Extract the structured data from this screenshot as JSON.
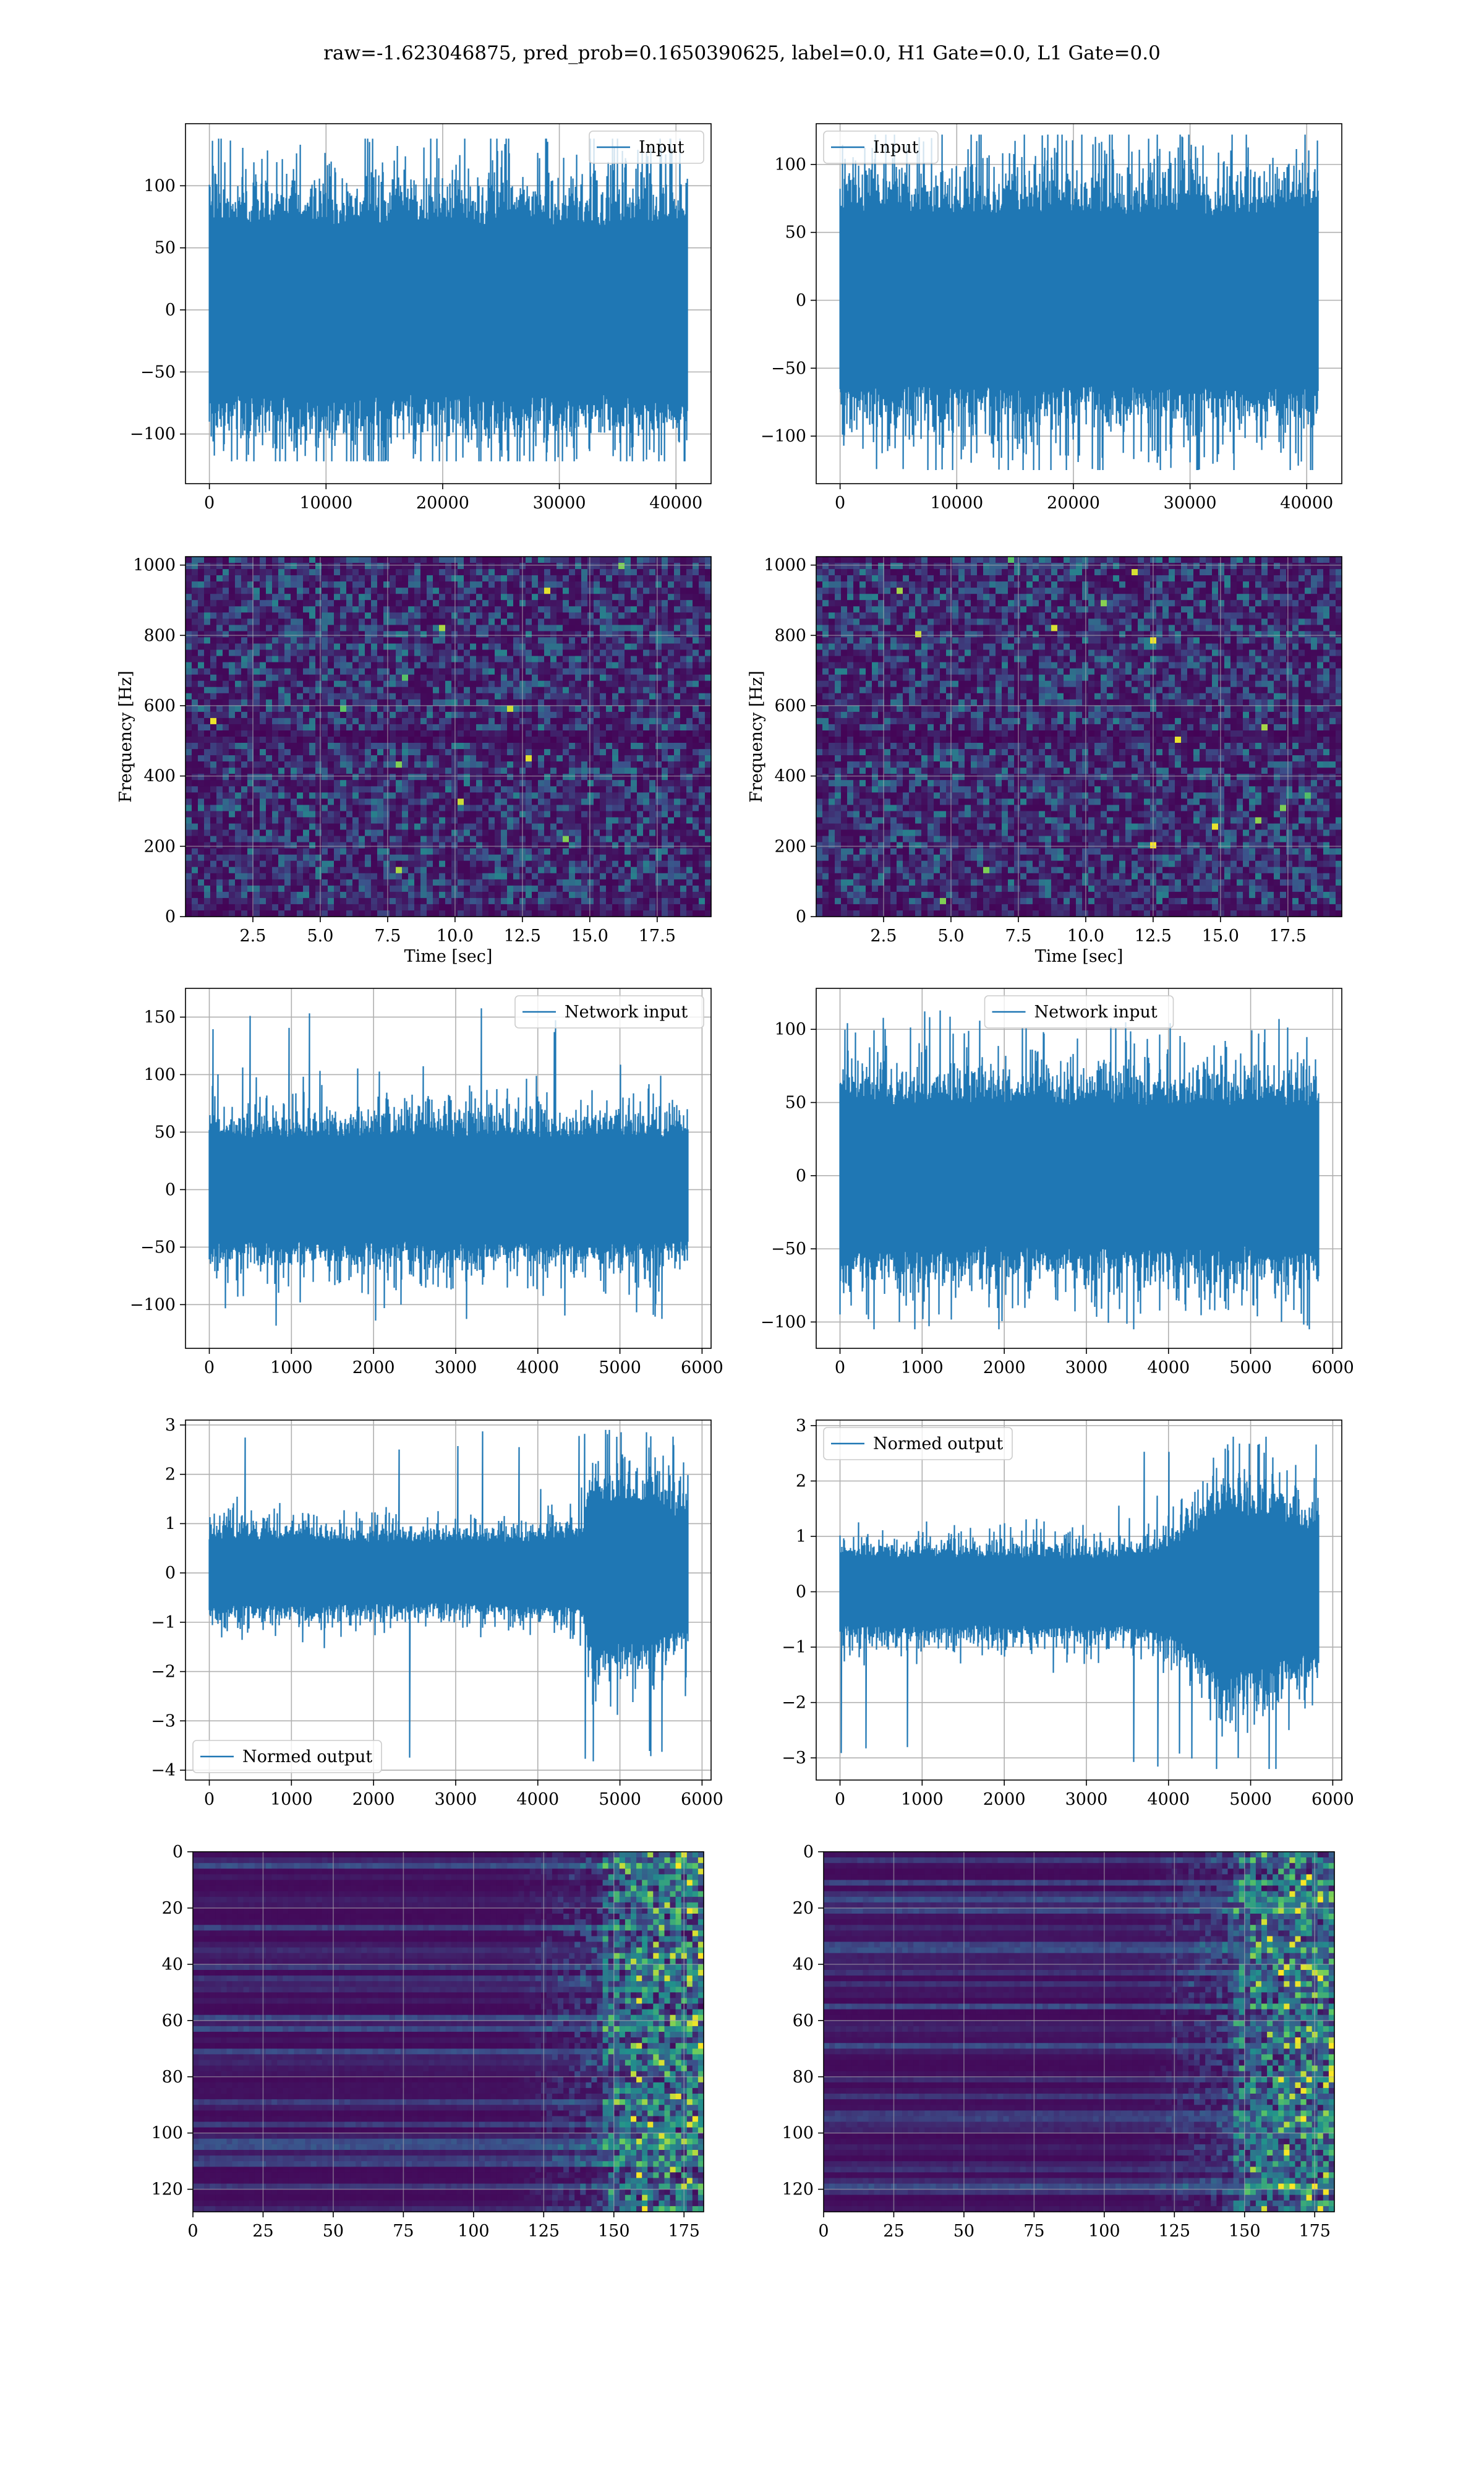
{
  "title": "raw=-1.623046875, pred_prob=0.1650390625, label=0.0, H1 Gate=0.0, L1 Gate=0.0",
  "colors": {
    "line": "#1f77b4",
    "grid": "#b0b0b0",
    "viridis_dark": "#440154",
    "viridis_mid": "#21918c",
    "viridis_bright": "#fde725"
  },
  "chart_data": [
    {
      "id": "input-h1",
      "type": "line",
      "legend": "Input",
      "legend_loc": "upper right",
      "xlim": [
        -2048,
        43008
      ],
      "ylim": [
        -140,
        150
      ],
      "xticks": [
        0,
        10000,
        20000,
        30000,
        40000
      ],
      "xtick_labels": [
        "0",
        "10000",
        "20000",
        "30000",
        "40000"
      ],
      "yticks": [
        -100,
        -50,
        0,
        50,
        100
      ],
      "ytick_labels": [
        "−100",
        "−50",
        "0",
        "50",
        "100"
      ],
      "xlabel": "",
      "ylabel": "",
      "grid": true,
      "signal": {
        "n": 40960,
        "x_range": [
          0,
          40960
        ],
        "core_amp": 68,
        "spike_max": 138,
        "spike_min": -122,
        "envelope": [
          [
            0,
            1
          ],
          [
            1,
            1
          ]
        ]
      }
    },
    {
      "id": "input-l1",
      "type": "line",
      "legend": "Input",
      "legend_loc": "upper left",
      "xlim": [
        -2048,
        43008
      ],
      "ylim": [
        -135,
        130
      ],
      "xticks": [
        0,
        10000,
        20000,
        30000,
        40000
      ],
      "xtick_labels": [
        "0",
        "10000",
        "20000",
        "30000",
        "40000"
      ],
      "yticks": [
        -100,
        -50,
        0,
        50,
        100
      ],
      "ytick_labels": [
        "−100",
        "−50",
        "0",
        "50",
        "100"
      ],
      "xlabel": "",
      "ylabel": "",
      "grid": true,
      "signal": {
        "n": 40960,
        "x_range": [
          0,
          40960
        ],
        "core_amp": 62,
        "spike_max": 122,
        "spike_min": -125,
        "envelope": [
          [
            0,
            1
          ],
          [
            1,
            1
          ]
        ]
      }
    },
    {
      "id": "spec-h1",
      "type": "heatmap",
      "xlabel": "Time [sec]",
      "ylabel": "Frequency [Hz]",
      "xlim": [
        0,
        19.5
      ],
      "ylim": [
        0,
        1024
      ],
      "xticks": [
        2.5,
        5.0,
        7.5,
        10.0,
        12.5,
        15.0,
        17.5
      ],
      "xtick_labels": [
        "2.5",
        "5.0",
        "7.5",
        "10.0",
        "12.5",
        "15.0",
        "17.5"
      ],
      "yticks": [
        0,
        200,
        400,
        600,
        800,
        1000
      ],
      "ytick_labels": [
        "0",
        "200",
        "400",
        "600",
        "800",
        "1000"
      ],
      "grid": true,
      "colormap": "viridis"
    },
    {
      "id": "spec-l1",
      "type": "heatmap",
      "xlabel": "Time [sec]",
      "ylabel": "Frequency [Hz]",
      "xlim": [
        0,
        19.5
      ],
      "ylim": [
        0,
        1024
      ],
      "xticks": [
        2.5,
        5.0,
        7.5,
        10.0,
        12.5,
        15.0,
        17.5
      ],
      "xtick_labels": [
        "2.5",
        "5.0",
        "7.5",
        "10.0",
        "12.5",
        "15.0",
        "17.5"
      ],
      "yticks": [
        0,
        200,
        400,
        600,
        800,
        1000
      ],
      "ytick_labels": [
        "0",
        "200",
        "400",
        "600",
        "800",
        "1000"
      ],
      "grid": true,
      "colormap": "viridis"
    },
    {
      "id": "netin-h1",
      "type": "line",
      "legend": "Network input",
      "legend_loc": "upper right",
      "xlim": [
        -290,
        6110
      ],
      "ylim": [
        -138,
        175
      ],
      "xticks": [
        0,
        1000,
        2000,
        3000,
        4000,
        5000,
        6000
      ],
      "xtick_labels": [
        "0",
        "1000",
        "2000",
        "3000",
        "4000",
        "5000",
        "6000"
      ],
      "yticks": [
        -100,
        -50,
        0,
        50,
        100,
        150
      ],
      "ytick_labels": [
        "−100",
        "−50",
        "0",
        "50",
        "100",
        "150"
      ],
      "xlabel": "",
      "ylabel": "",
      "grid": true,
      "signal": {
        "n": 5824,
        "x_range": [
          0,
          5824
        ],
        "core_amp": 45,
        "spike_max": 160,
        "spike_min": -120,
        "envelope": [
          [
            0,
            1
          ],
          [
            1,
            1
          ]
        ]
      }
    },
    {
      "id": "netin-l1",
      "type": "line",
      "legend": "Network input",
      "legend_loc": "upper center",
      "xlim": [
        -290,
        6110
      ],
      "ylim": [
        -118,
        128
      ],
      "xticks": [
        0,
        1000,
        2000,
        3000,
        4000,
        5000,
        6000
      ],
      "xtick_labels": [
        "0",
        "1000",
        "2000",
        "3000",
        "4000",
        "5000",
        "6000"
      ],
      "yticks": [
        -100,
        -50,
        0,
        50,
        100
      ],
      "ytick_labels": [
        "−100",
        "−50",
        "0",
        "50",
        "100"
      ],
      "xlabel": "",
      "ylabel": "",
      "grid": true,
      "signal": {
        "n": 5824,
        "x_range": [
          0,
          5824
        ],
        "core_amp": 48,
        "spike_max": 115,
        "spike_min": -105,
        "envelope": [
          [
            0,
            1
          ],
          [
            1,
            1
          ]
        ]
      }
    },
    {
      "id": "normed-h1",
      "type": "line",
      "legend": "Normed output",
      "legend_loc": "lower left",
      "xlim": [
        -290,
        6110
      ],
      "ylim": [
        -4.2,
        3.1
      ],
      "xticks": [
        0,
        1000,
        2000,
        3000,
        4000,
        5000,
        6000
      ],
      "xtick_labels": [
        "0",
        "1000",
        "2000",
        "3000",
        "4000",
        "5000",
        "6000"
      ],
      "yticks": [
        -4,
        -3,
        -2,
        -1,
        0,
        1,
        2,
        3
      ],
      "ytick_labels": [
        "−4",
        "−3",
        "−2",
        "−1",
        "0",
        "1",
        "2",
        "3"
      ],
      "xlabel": "",
      "ylabel": "",
      "grid": true,
      "signal": {
        "n": 5824,
        "x_range": [
          0,
          5824
        ],
        "core_amp": 0.65,
        "spike_max": 2.9,
        "spike_min": -3.9,
        "envelope": [
          [
            0,
            1.0
          ],
          [
            0.6,
            0.9
          ],
          [
            0.78,
            1.1
          ],
          [
            0.8,
            2.2
          ],
          [
            0.92,
            2.0
          ],
          [
            1,
            1.6
          ]
        ]
      }
    },
    {
      "id": "normed-l1",
      "type": "line",
      "legend": "Normed output",
      "legend_loc": "upper left",
      "xlim": [
        -290,
        6110
      ],
      "ylim": [
        -3.4,
        3.1
      ],
      "xticks": [
        0,
        1000,
        2000,
        3000,
        4000,
        5000,
        6000
      ],
      "xtick_labels": [
        "0",
        "1000",
        "2000",
        "3000",
        "4000",
        "5000",
        "6000"
      ],
      "yticks": [
        -3,
        -2,
        -1,
        0,
        1,
        2,
        3
      ],
      "ytick_labels": [
        "−3",
        "−2",
        "−1",
        "0",
        "1",
        "2",
        "3"
      ],
      "xlabel": "",
      "ylabel": "",
      "grid": true,
      "signal": {
        "n": 5824,
        "x_range": [
          0,
          5824
        ],
        "core_amp": 0.6,
        "spike_max": 2.8,
        "spike_min": -3.2,
        "envelope": [
          [
            0,
            1.0
          ],
          [
            0.65,
            1.0
          ],
          [
            0.72,
            1.5
          ],
          [
            0.8,
            2.4
          ],
          [
            0.9,
            2.1
          ],
          [
            1,
            1.8
          ]
        ]
      }
    },
    {
      "id": "features-h1",
      "type": "heatmap",
      "xlabel": "",
      "ylabel": "",
      "xlim": [
        0,
        182
      ],
      "ylim": [
        128,
        0
      ],
      "xticks": [
        0,
        25,
        50,
        75,
        100,
        125,
        150,
        175
      ],
      "xtick_labels": [
        "0",
        "25",
        "50",
        "75",
        "100",
        "125",
        "150",
        "175"
      ],
      "yticks": [
        0,
        20,
        40,
        60,
        80,
        100,
        120
      ],
      "ytick_labels": [
        "0",
        "20",
        "40",
        "60",
        "80",
        "100",
        "120"
      ],
      "grid": true,
      "colormap": "viridis"
    },
    {
      "id": "features-l1",
      "type": "heatmap",
      "xlabel": "",
      "ylabel": "",
      "xlim": [
        0,
        182
      ],
      "ylim": [
        128,
        0
      ],
      "xticks": [
        0,
        25,
        50,
        75,
        100,
        125,
        150,
        175
      ],
      "xtick_labels": [
        "0",
        "25",
        "50",
        "75",
        "100",
        "125",
        "150",
        "175"
      ],
      "yticks": [
        0,
        20,
        40,
        60,
        80,
        100,
        120
      ],
      "ytick_labels": [
        "0",
        "20",
        "40",
        "60",
        "80",
        "100",
        "120"
      ],
      "grid": true,
      "colormap": "viridis"
    }
  ]
}
